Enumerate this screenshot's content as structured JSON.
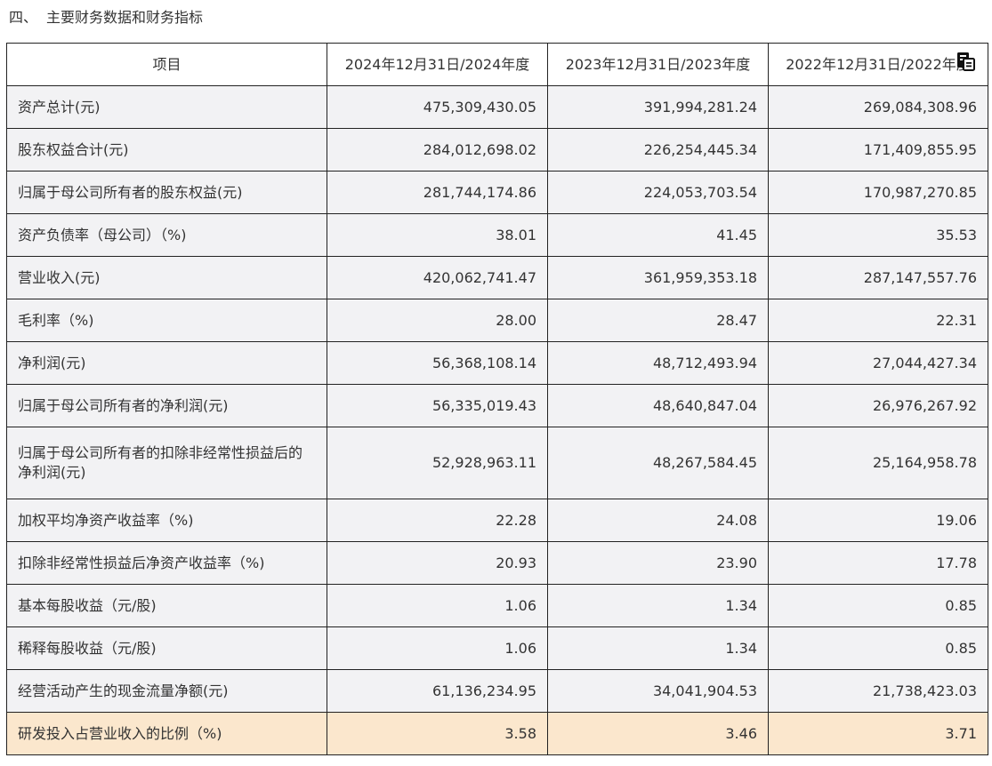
{
  "section": {
    "number": "四、",
    "title": "主要财务数据和财务指标"
  },
  "table": {
    "headers": [
      "项目",
      "2024年12月31日/2024年度",
      "2023年12月31日/2023年度",
      "2022年12月31日/2022年度"
    ],
    "rows": [
      {
        "label": "资产总计(元)",
        "values": [
          "475,309,430.05",
          "391,994,281.24",
          "269,084,308.96"
        ]
      },
      {
        "label": "股东权益合计(元)",
        "values": [
          "284,012,698.02",
          "226,254,445.34",
          "171,409,855.95"
        ]
      },
      {
        "label": "归属于母公司所有者的股东权益(元)",
        "values": [
          "281,744,174.86",
          "224,053,703.54",
          "170,987,270.85"
        ]
      },
      {
        "label": "资产负债率（母公司）（%)",
        "values": [
          "38.01",
          "41.45",
          "35.53"
        ]
      },
      {
        "label": "营业收入(元)",
        "values": [
          "420,062,741.47",
          "361,959,353.18",
          "287,147,557.76"
        ]
      },
      {
        "label": "毛利率（%)",
        "values": [
          "28.00",
          "28.47",
          "22.31"
        ]
      },
      {
        "label": "净利润(元)",
        "values": [
          "56,368,108.14",
          "48,712,493.94",
          "27,044,427.34"
        ]
      },
      {
        "label": "归属于母公司所有者的净利润(元)",
        "values": [
          "56,335,019.43",
          "48,640,847.04",
          "26,976,267.92"
        ]
      },
      {
        "label": "归属于母公司所有者的扣除非经常性损益后的净利润(元)",
        "values": [
          "52,928,963.11",
          "48,267,584.45",
          "25,164,958.78"
        ]
      },
      {
        "label": "加权平均净资产收益率（%)",
        "values": [
          "22.28",
          "24.08",
          "19.06"
        ]
      },
      {
        "label": "扣除非经常性损益后净资产收益率（%)",
        "values": [
          "20.93",
          "23.90",
          "17.78"
        ]
      },
      {
        "label": "基本每股收益（元/股)",
        "values": [
          "1.06",
          "1.34",
          "0.85"
        ]
      },
      {
        "label": "稀释每股收益（元/股)",
        "values": [
          "1.06",
          "1.34",
          "0.85"
        ]
      },
      {
        "label": "经营活动产生的现金流量净额(元)",
        "values": [
          "61,136,234.95",
          "34,041,904.53",
          "21,738,423.03"
        ]
      },
      {
        "label": "研发投入占营业收入的比例（%)",
        "values": [
          "3.58",
          "3.46",
          "3.71"
        ]
      }
    ]
  },
  "icons": {
    "overlay": "document-copy-icon"
  },
  "colors": {
    "row_bg": "#f2f2f4",
    "highlight_bg": "#fbe7cd",
    "border": "#222222"
  }
}
